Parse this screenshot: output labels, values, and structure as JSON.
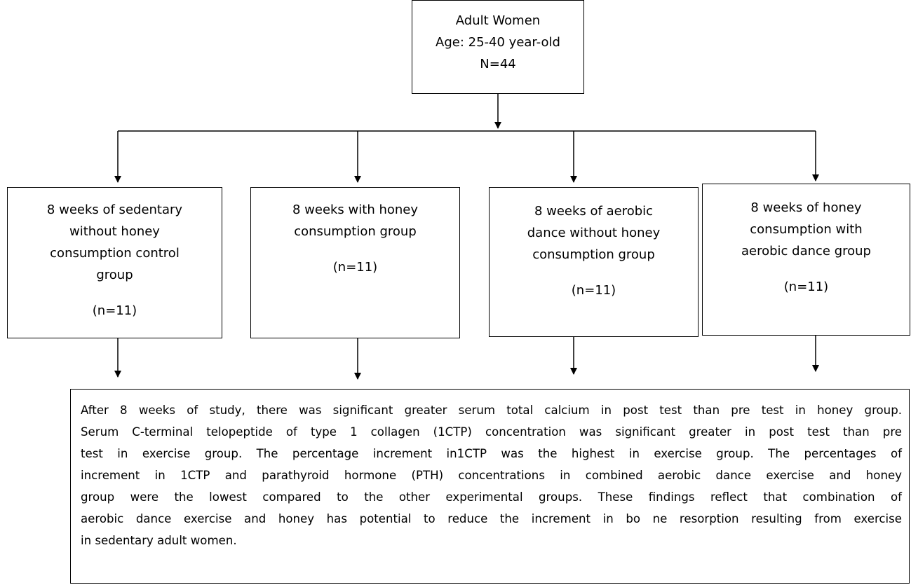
{
  "top": {
    "lines": [
      "Adult Women",
      "Age: 25-40 year-old",
      "N=44"
    ]
  },
  "groups": [
    {
      "lines": [
        "8 weeks of sedentary",
        "without honey",
        "consumption control",
        "group"
      ],
      "n": "(n=11)"
    },
    {
      "lines": [
        "8 weeks with honey",
        "consumption group"
      ],
      "n": "(n=11)"
    },
    {
      "lines": [
        "8 weeks of aerobic",
        "dance without honey",
        "consumption group"
      ],
      "n": "(n=11)"
    },
    {
      "lines": [
        "8 weeks of honey",
        "consumption with",
        "aerobic dance group"
      ],
      "n": "(n=11)"
    }
  ],
  "summary": {
    "lines": [
      "After 8 weeks of study, there was significant greater serum total calcium in post test than pre test in honey group.",
      "Serum C-terminal telopeptide of type 1 collagen (1CTP) concentration was significant greater in post test than pre",
      "test in exercise group. The percentage increment in1CTP was the highest in exercise group.  The percentages of",
      "increment in 1CTP and parathyroid hormone (PTH) concentrations in combined aerobic dance exercise and honey",
      "group were the lowest compared to the other experimental groups. These findings reflect that combination of",
      "aerobic dance exercise and honey has potential to reduce the increment in bo ne resorption resulting from exercise",
      "in sedentary adult women."
    ]
  }
}
